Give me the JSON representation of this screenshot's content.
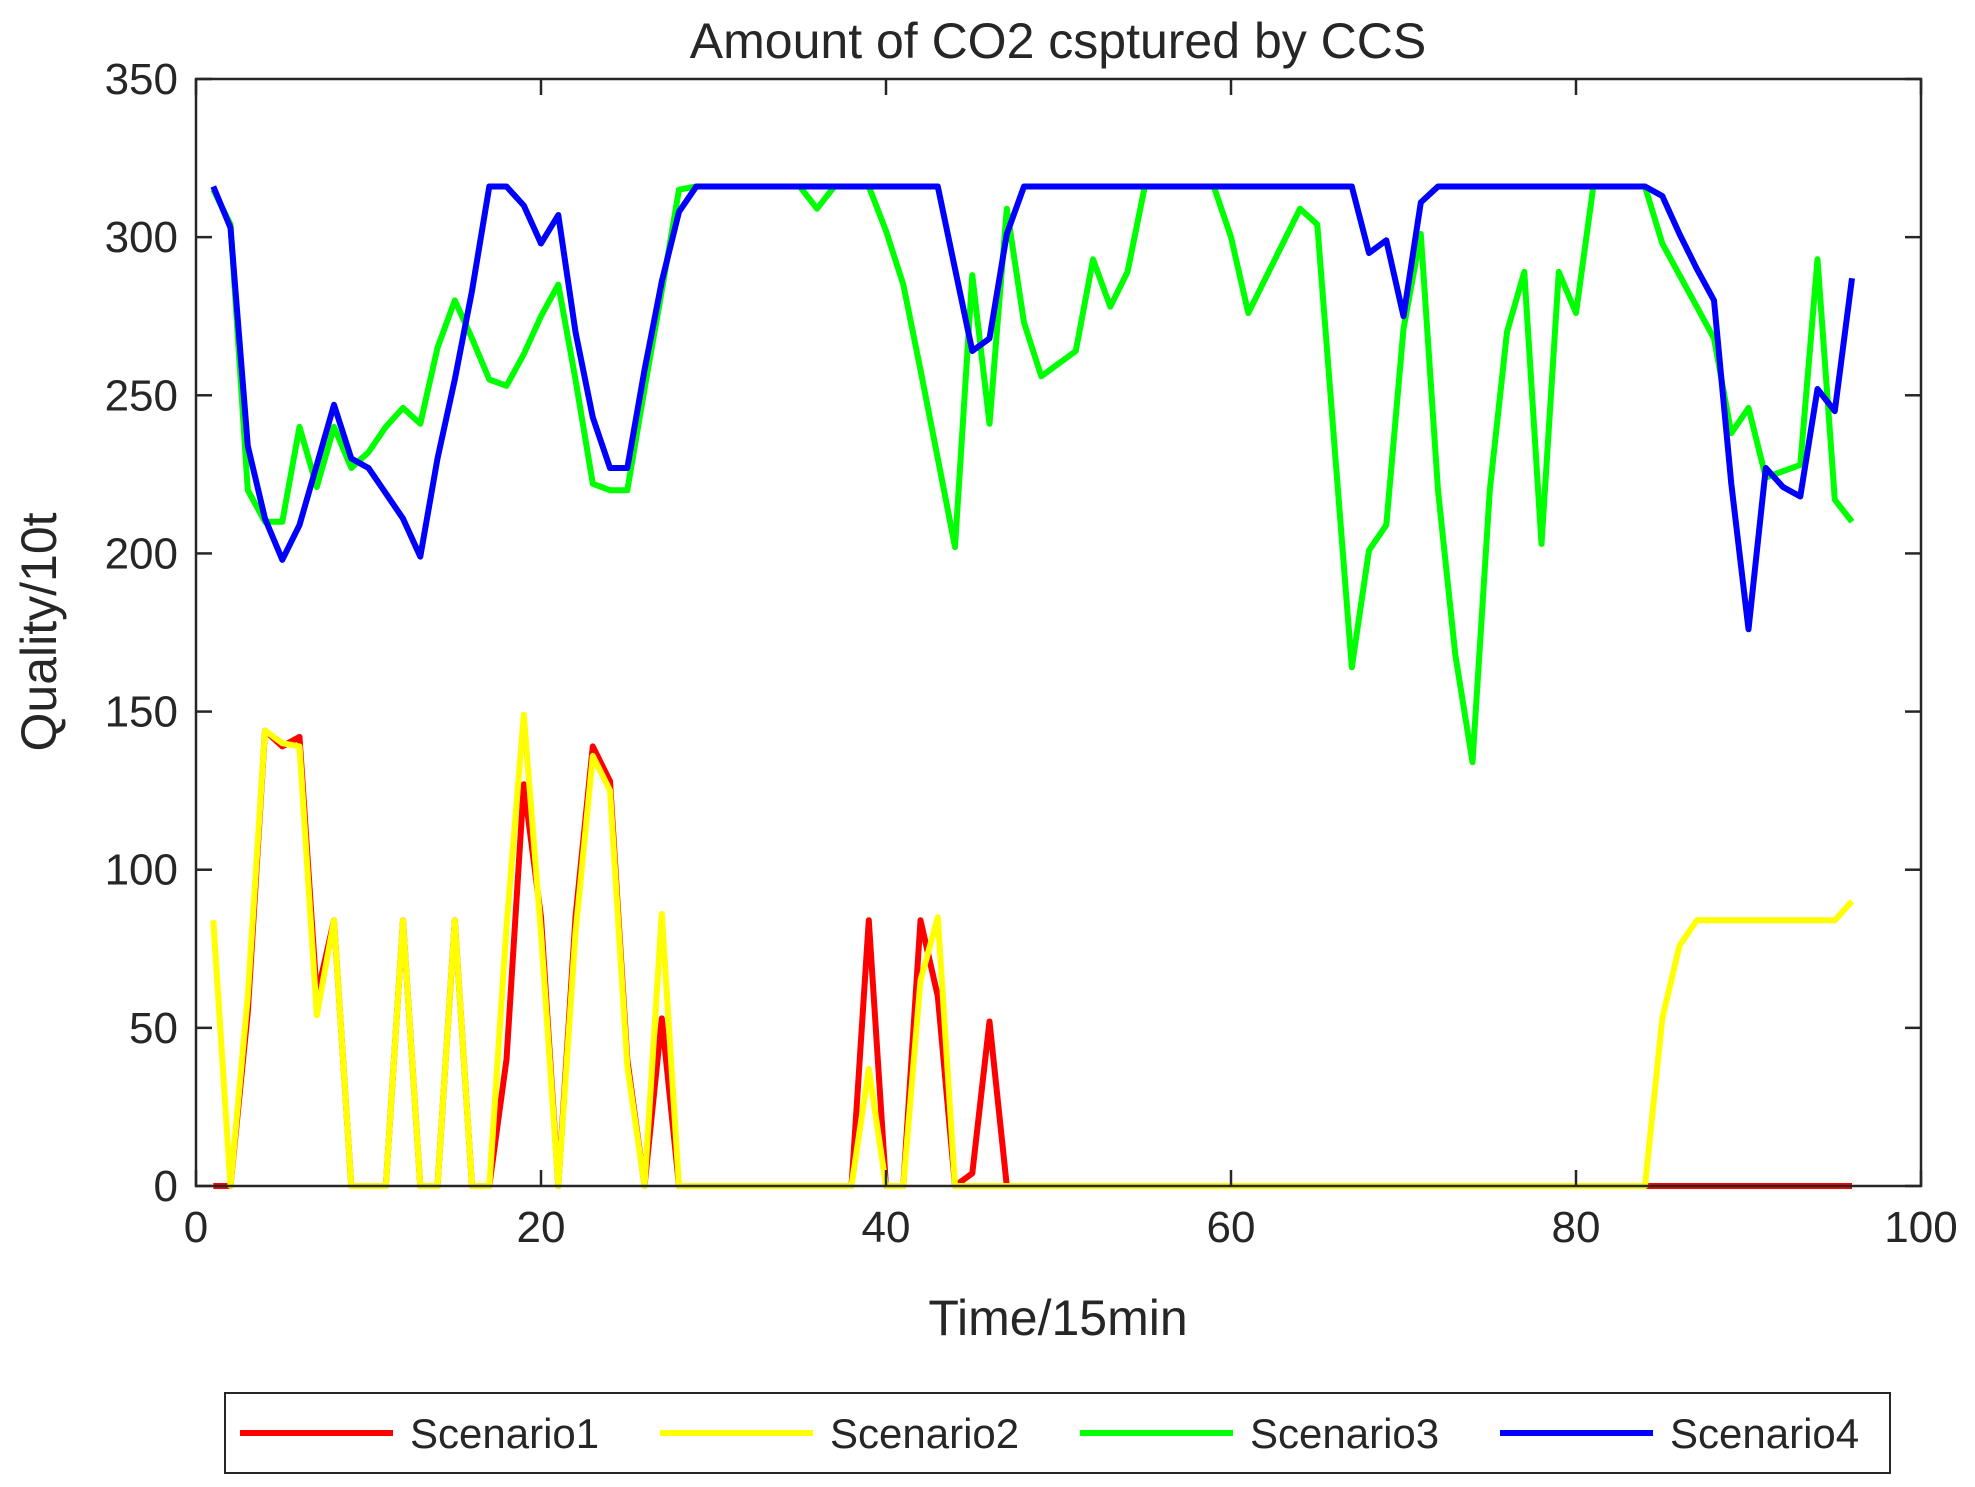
{
  "chart_data": {
    "type": "line",
    "title": "Amount of CO2 csptured by CCS",
    "xlabel": "Time/15min",
    "ylabel": "Quality/10t",
    "xlim": [
      0,
      100
    ],
    "ylim": [
      0,
      350
    ],
    "xticks": [
      0,
      20,
      40,
      60,
      80,
      100
    ],
    "yticks": [
      0,
      50,
      100,
      150,
      200,
      250,
      300,
      350
    ],
    "grid": false,
    "legend_position": "bottom-outside",
    "x": [
      1,
      2,
      3,
      4,
      5,
      6,
      7,
      8,
      9,
      10,
      11,
      12,
      13,
      14,
      15,
      16,
      17,
      18,
      19,
      20,
      21,
      22,
      23,
      24,
      25,
      26,
      27,
      28,
      29,
      30,
      31,
      32,
      33,
      34,
      35,
      36,
      37,
      38,
      39,
      40,
      41,
      42,
      43,
      44,
      45,
      46,
      47,
      48,
      49,
      50,
      51,
      52,
      53,
      54,
      55,
      56,
      57,
      58,
      59,
      60,
      61,
      62,
      63,
      64,
      65,
      66,
      67,
      68,
      69,
      70,
      71,
      72,
      73,
      74,
      75,
      76,
      77,
      78,
      79,
      80,
      81,
      82,
      83,
      84,
      85,
      86,
      87,
      88,
      89,
      90,
      91,
      92,
      93,
      94,
      95,
      96
    ],
    "series": [
      {
        "name": "Scenario1",
        "color": "#ff0000",
        "values": [
          0,
          0,
          55,
          144,
          139,
          142,
          60,
          84,
          0,
          0,
          0,
          84,
          0,
          0,
          84,
          0,
          0,
          40,
          127,
          85,
          0,
          85,
          139,
          128,
          40,
          0,
          53,
          0,
          0,
          0,
          0,
          0,
          0,
          0,
          0,
          0,
          0,
          0,
          84,
          0,
          0,
          84,
          60,
          0,
          4,
          52,
          0,
          0,
          0,
          0,
          0,
          0,
          0,
          0,
          0,
          0,
          0,
          0,
          0,
          0,
          0,
          0,
          0,
          0,
          0,
          0,
          0,
          0,
          0,
          0,
          0,
          0,
          0,
          0,
          0,
          0,
          0,
          0,
          0,
          0,
          0,
          0,
          0,
          0,
          0,
          0,
          0,
          0,
          0,
          0,
          0,
          0,
          0,
          0,
          0,
          0
        ]
      },
      {
        "name": "Scenario2",
        "color": "#ffff00",
        "values": [
          84,
          0,
          60,
          144,
          140,
          139,
          54,
          84,
          0,
          0,
          0,
          84,
          0,
          0,
          84,
          0,
          0,
          82,
          149,
          80,
          0,
          80,
          136,
          125,
          38,
          0,
          86,
          0,
          0,
          0,
          0,
          0,
          0,
          0,
          0,
          0,
          0,
          0,
          37,
          0,
          0,
          65,
          85,
          0,
          0,
          0,
          0,
          0,
          0,
          0,
          0,
          0,
          0,
          0,
          0,
          0,
          0,
          0,
          0,
          0,
          0,
          0,
          0,
          0,
          0,
          0,
          0,
          0,
          0,
          0,
          0,
          0,
          0,
          0,
          0,
          0,
          0,
          0,
          0,
          0,
          0,
          0,
          0,
          0,
          53,
          76,
          84,
          84,
          84,
          84,
          84,
          84,
          84,
          84,
          84,
          90
        ]
      },
      {
        "name": "Scenario3",
        "color": "#00ff00",
        "values": [
          315,
          304,
          220,
          210,
          210,
          240,
          221,
          240,
          227,
          232,
          240,
          246,
          241,
          265,
          280,
          268,
          255,
          253,
          263,
          275,
          285,
          255,
          222,
          220,
          220,
          252,
          283,
          315,
          316,
          316,
          316,
          316,
          316,
          316,
          316,
          309,
          316,
          316,
          316,
          302,
          285,
          258,
          230,
          202,
          288,
          241,
          309,
          273,
          256,
          260,
          264,
          293,
          278,
          289,
          316,
          316,
          316,
          316,
          316,
          300,
          276,
          287,
          298,
          309,
          304,
          234,
          164,
          201,
          209,
          271,
          301,
          220,
          168,
          134,
          220,
          270,
          289,
          203,
          289,
          276,
          316,
          316,
          316,
          316,
          298,
          288,
          278,
          268,
          238,
          246,
          224,
          226,
          228,
          293,
          217,
          210
        ]
      },
      {
        "name": "Scenario4",
        "color": "#0000ff",
        "values": [
          316,
          303,
          234,
          211,
          198,
          209,
          228,
          247,
          230,
          227,
          219,
          211,
          199,
          230,
          255,
          283,
          316,
          316,
          310,
          298,
          307,
          270,
          243,
          227,
          227,
          258,
          286,
          308,
          316,
          316,
          316,
          316,
          316,
          316,
          316,
          316,
          316,
          316,
          316,
          316,
          316,
          316,
          316,
          290,
          264,
          268,
          301,
          316,
          316,
          316,
          316,
          316,
          316,
          316,
          316,
          316,
          316,
          316,
          316,
          316,
          316,
          316,
          316,
          316,
          316,
          316,
          316,
          295,
          299,
          275,
          311,
          316,
          316,
          316,
          316,
          316,
          316,
          316,
          316,
          316,
          316,
          316,
          316,
          316,
          313,
          301,
          290,
          280,
          222,
          176,
          227,
          221,
          218,
          252,
          245,
          287
        ]
      }
    ]
  }
}
